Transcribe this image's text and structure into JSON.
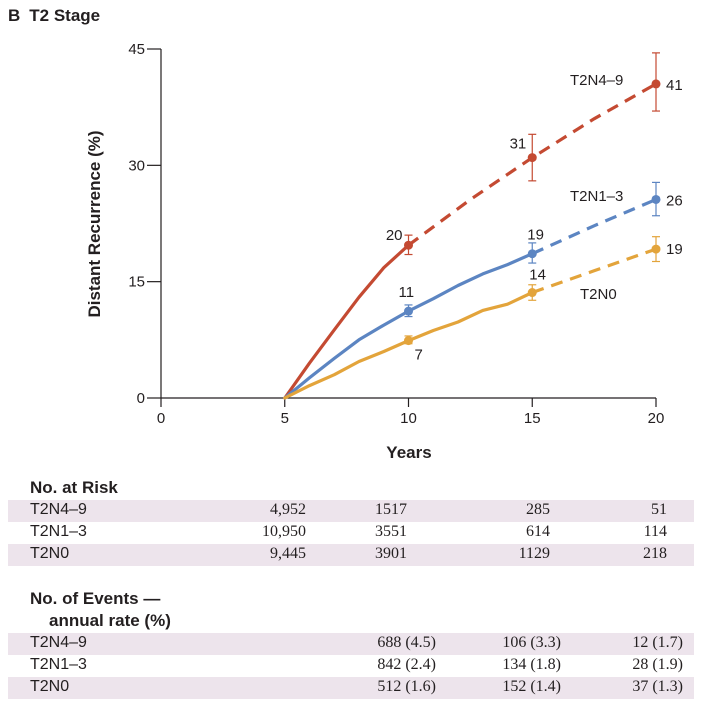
{
  "panel": {
    "letter": "B",
    "title": "T2 Stage"
  },
  "colors": {
    "t2n4_9": "#c44a32",
    "t2n1_3": "#5c85c2",
    "t2n0": "#e3a43b",
    "axis": "#231f20",
    "shade": "#ede4ec"
  },
  "chart_data": {
    "type": "line",
    "title": "T2 Stage",
    "xlabel": "Years",
    "ylabel": "Distant Recurrence (%)",
    "xlim": [
      0,
      20
    ],
    "ylim": [
      0,
      45
    ],
    "x_ticks": [
      0,
      5,
      10,
      15,
      20
    ],
    "y_ticks": [
      0,
      15,
      30,
      45
    ],
    "grid": false,
    "series": [
      {
        "name": "T2N4–9",
        "color": "#c44a32",
        "solid": [
          [
            5,
            0
          ],
          [
            6,
            4.5
          ],
          [
            7,
            8.8
          ],
          [
            8,
            13
          ],
          [
            9,
            16.8
          ],
          [
            10,
            19.7
          ]
        ],
        "dashed": [
          [
            10,
            19.7
          ],
          [
            12.5,
            25.6
          ],
          [
            15,
            31
          ],
          [
            17.5,
            36
          ],
          [
            20,
            40.5
          ]
        ],
        "markers": [
          {
            "x": 10,
            "y": 19.7,
            "low": 18.5,
            "high": 21,
            "label": "20"
          },
          {
            "x": 15,
            "y": 31,
            "low": 28,
            "high": 34,
            "label": "31"
          },
          {
            "x": 20,
            "y": 40.5,
            "low": 37,
            "high": 44.5,
            "label": "41"
          }
        ],
        "end_label": "T2N4–9"
      },
      {
        "name": "T2N1–3",
        "color": "#5c85c2",
        "solid": [
          [
            5,
            0
          ],
          [
            6,
            2.6
          ],
          [
            7,
            5.1
          ],
          [
            8,
            7.5
          ],
          [
            9,
            9.4
          ],
          [
            10,
            11.2
          ],
          [
            11,
            12.8
          ],
          [
            12,
            14.5
          ],
          [
            13,
            16
          ],
          [
            14,
            17.2
          ],
          [
            15,
            18.6
          ]
        ],
        "dashed": [
          [
            15,
            18.6
          ],
          [
            17.5,
            22.2
          ],
          [
            20,
            25.6
          ]
        ],
        "markers": [
          {
            "x": 10,
            "y": 11.2,
            "low": 10.5,
            "high": 12,
            "label": "11"
          },
          {
            "x": 15,
            "y": 18.6,
            "low": 17.4,
            "high": 20,
            "label": "19"
          },
          {
            "x": 20,
            "y": 25.6,
            "low": 23.5,
            "high": 27.8,
            "label": "26"
          }
        ],
        "end_label": "T2N1–3"
      },
      {
        "name": "T2N0",
        "color": "#e3a43b",
        "solid": [
          [
            5,
            0
          ],
          [
            6,
            1.6
          ],
          [
            7,
            3
          ],
          [
            8,
            4.7
          ],
          [
            9,
            6
          ],
          [
            10,
            7.4
          ],
          [
            11,
            8.7
          ],
          [
            12,
            9.8
          ],
          [
            13,
            11.3
          ],
          [
            14,
            12.1
          ],
          [
            15,
            13.6
          ]
        ],
        "dashed": [
          [
            15,
            13.6
          ],
          [
            17.5,
            16.4
          ],
          [
            20,
            19.2
          ]
        ],
        "markers": [
          {
            "x": 10,
            "y": 7.4,
            "low": 7,
            "high": 8,
            "label": "7"
          },
          {
            "x": 15,
            "y": 13.6,
            "low": 12.6,
            "high": 14.6,
            "label": "14"
          },
          {
            "x": 20,
            "y": 19.2,
            "low": 17.6,
            "high": 20.8,
            "label": "19"
          }
        ],
        "end_label": "T2N0"
      }
    ]
  },
  "at_risk": {
    "title": "No. at Risk",
    "rows": [
      {
        "label": "T2N4–9",
        "values": [
          "4,952",
          "1517",
          "285",
          "51"
        ]
      },
      {
        "label": "T2N1–3",
        "values": [
          "10,950",
          "3551",
          "614",
          "114"
        ]
      },
      {
        "label": "T2N0",
        "values": [
          "9,445",
          "3901",
          "1129",
          "218"
        ]
      }
    ]
  },
  "events": {
    "title_line1": "No. of Events —",
    "title_line2": "annual rate (%)",
    "rows": [
      {
        "label": "T2N4–9",
        "values": [
          "688 (4.5)",
          "106 (3.3)",
          "12 (1.7)"
        ]
      },
      {
        "label": "T2N1–3",
        "values": [
          "842 (2.4)",
          "134 (1.8)",
          "28 (1.9)"
        ]
      },
      {
        "label": "T2N0",
        "values": [
          "512 (1.6)",
          "152 (1.4)",
          "37 (1.3)"
        ]
      }
    ]
  }
}
